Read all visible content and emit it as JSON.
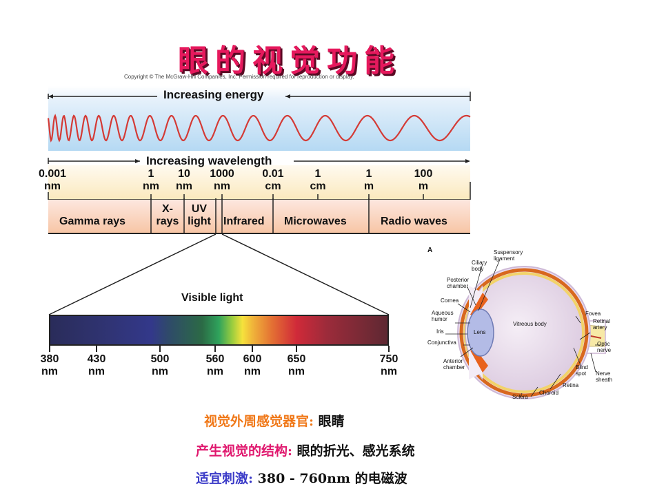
{
  "slide": {
    "title": "眼的视觉功能",
    "title_color": "#e6195d",
    "copyright": "Copyright © The McGraw-Hill Companies, Inc. Permission required for reproduction or display."
  },
  "em_spectrum": {
    "energy_label": "Increasing energy",
    "wavelength_label": "Increasing wavelength",
    "wave_color": "#d43a35",
    "ticks": [
      {
        "value": "0.001",
        "unit": "nm"
      },
      {
        "value": "1",
        "unit": "nm"
      },
      {
        "value": "10",
        "unit": "nm"
      },
      {
        "value": "1000",
        "unit": "nm"
      },
      {
        "value": "0.01",
        "unit": "cm"
      },
      {
        "value": "1",
        "unit": "cm"
      },
      {
        "value": "1",
        "unit": "m"
      },
      {
        "value": "100",
        "unit": "m"
      }
    ],
    "regions": [
      {
        "line1": "Gamma rays",
        "line2": ""
      },
      {
        "line1": "X-",
        "line2": "rays"
      },
      {
        "line1": "UV",
        "line2": "light"
      },
      {
        "line1": "Infrared",
        "line2": ""
      },
      {
        "line1": "Microwaves",
        "line2": ""
      },
      {
        "line1": "Radio waves",
        "line2": ""
      }
    ]
  },
  "visible_light": {
    "label": "Visible light",
    "ticks": [
      {
        "value": "380",
        "unit": "nm"
      },
      {
        "value": "430",
        "unit": "nm"
      },
      {
        "value": "500",
        "unit": "nm"
      },
      {
        "value": "560",
        "unit": "nm"
      },
      {
        "value": "600",
        "unit": "nm"
      },
      {
        "value": "650",
        "unit": "nm"
      },
      {
        "value": "750",
        "unit": "nm"
      }
    ]
  },
  "eye_diagram": {
    "panel_letter": "A",
    "labels": {
      "suspensory": "Suspensory",
      "ligament": "ligament",
      "ciliary": "Ciliary",
      "body": "body",
      "posterior": "Posterior",
      "chamber": "chamber",
      "cornea": "Cornea",
      "aqueous": "Aqueous",
      "humor": "humor",
      "iris": "Iris",
      "conjunctiva": "Conjunctiva",
      "anterior": "Anterior",
      "anterior_chamber": "chamber",
      "lens": "Lens",
      "vitreous": "Vitreous body",
      "fovea": "Fovea",
      "retinal": "Retinal",
      "artery": "artery",
      "optic": "Optic",
      "nerve": "nerve",
      "blind": "Blind",
      "spot": "spot",
      "nerve2": "Nerve",
      "sheath": "sheath",
      "retina": "Retina",
      "choroid": "Choroid",
      "sclera": "Sclera"
    }
  },
  "notes": [
    {
      "label": "视觉外周感觉器官:",
      "value": "眼睛",
      "label_color": "#f07818"
    },
    {
      "label": "产生视觉的结构:",
      "value": "眼的折光、感光系统",
      "label_color": "#e0186e"
    },
    {
      "label": "适宜刺激:",
      "value": "380 - 760nm 的电磁波",
      "label_color": "#3c3cc8"
    }
  ]
}
